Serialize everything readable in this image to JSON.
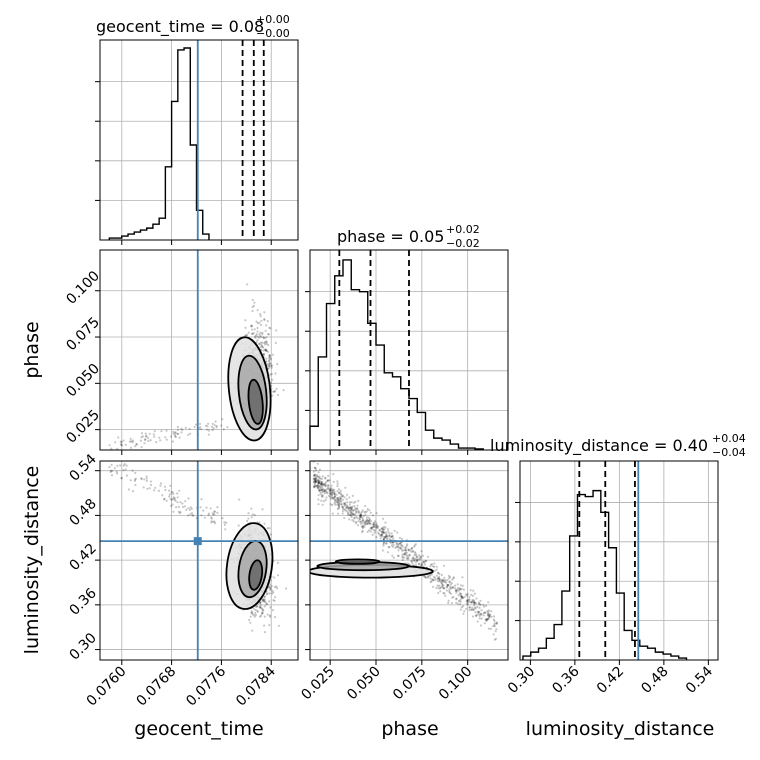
{
  "chart_data": {
    "type": "corner",
    "parameters": [
      "geocent_time",
      "phase",
      "luminosity_distance"
    ],
    "truths": {
      "geocent_time": 0.07722,
      "phase": null,
      "luminosity_distance": 0.4455
    },
    "truth_color": "#4682b4",
    "grid": true,
    "titles": [
      {
        "param": "geocent_time",
        "text": "geocent_time = 0.08",
        "plus": "+0.00",
        "minus": "−0.00"
      },
      {
        "param": "phase",
        "text": "phase = 0.05",
        "plus": "+0.02",
        "minus": "−0.02"
      },
      {
        "param": "luminosity_distance",
        "text": "luminosity_distance = 0.40",
        "plus": "+0.04",
        "minus": "−0.04"
      }
    ],
    "axes": {
      "geocent_time": {
        "label": "geocent_time",
        "range": [
          0.07565,
          0.07883
        ],
        "ticks": [
          0.076,
          0.0768,
          0.0776,
          0.0784
        ],
        "tick_labels": [
          "0.0760",
          "0.0768",
          "0.0776",
          "0.0784"
        ]
      },
      "phase": {
        "label": "phase",
        "range": [
          0.014,
          0.122
        ],
        "ticks": [
          0.025,
          0.05,
          0.075,
          0.1
        ],
        "tick_labels": [
          "0.025",
          "0.050",
          "0.075",
          "0.100"
        ]
      },
      "luminosity_distance": {
        "label": "luminosity_distance",
        "range": [
          0.286,
          0.553
        ],
        "ticks": [
          0.3,
          0.36,
          0.42,
          0.48,
          0.54
        ],
        "tick_labels": [
          "0.30",
          "0.36",
          "0.42",
          "0.48",
          "0.54"
        ]
      }
    },
    "histograms": {
      "geocent_time": {
        "bin_start": 0.0758,
        "bin_width": 0.0001,
        "counts": [
          0.01,
          0.01,
          0.02,
          0.03,
          0.04,
          0.05,
          0.06,
          0.08,
          0.11,
          0.37,
          0.7,
          0.96,
          0.97,
          0.48,
          0.15,
          0.03
        ],
        "quantiles": [
          0.07794,
          0.07812,
          0.07828
        ]
      },
      "phase": {
        "bin_start": 0.014,
        "bin_width": 0.0045,
        "counts": [
          0.12,
          0.47,
          0.74,
          0.88,
          0.96,
          0.81,
          0.8,
          0.64,
          0.53,
          0.39,
          0.37,
          0.31,
          0.26,
          0.19,
          0.1,
          0.06,
          0.05,
          0.03,
          0.01,
          0.01,
          0.005
        ],
        "quantiles": [
          0.03,
          0.047,
          0.068
        ]
      },
      "luminosity_distance": {
        "bin_start": 0.29,
        "bin_width": 0.0105,
        "counts": [
          0.02,
          0.04,
          0.06,
          0.11,
          0.18,
          0.35,
          0.63,
          0.84,
          0.83,
          0.86,
          0.75,
          0.57,
          0.34,
          0.15,
          0.1,
          0.07,
          0.06,
          0.04,
          0.03,
          0.02,
          0.01
        ],
        "quantiles": [
          0.366,
          0.401,
          0.441
        ]
      }
    },
    "pairs": [
      {
        "x": "geocent_time",
        "y": "phase",
        "truth_x": 0.07722,
        "truth_y": null
      },
      {
        "x": "geocent_time",
        "y": "luminosity_distance",
        "truth_x": 0.07722,
        "truth_y": 0.4455
      },
      {
        "x": "phase",
        "y": "luminosity_distance",
        "truth_x": null,
        "truth_y": 0.4455
      }
    ]
  }
}
